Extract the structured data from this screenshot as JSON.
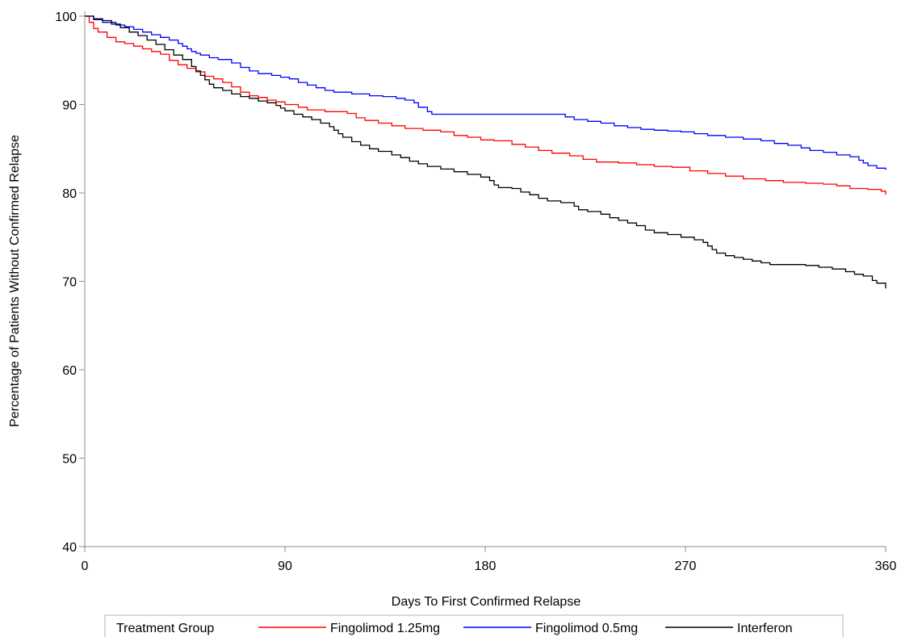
{
  "chart_data": {
    "type": "line",
    "title": "",
    "xlabel": "Days To First Confirmed Relapse",
    "ylabel": "Percentage of Patients Without Confirmed Relapse",
    "xlim": [
      0,
      360
    ],
    "ylim": [
      40,
      100
    ],
    "xticks": [
      0,
      90,
      180,
      270,
      360
    ],
    "yticks": [
      40,
      50,
      60,
      70,
      80,
      90,
      100
    ],
    "grid": false,
    "step": true,
    "legend": {
      "title": "Treatment Group",
      "placement": "bottom"
    },
    "series": [
      {
        "name": "Fingolimod 1.25mg",
        "color": "#ff0000",
        "points": [
          [
            0,
            100
          ],
          [
            2,
            99.3
          ],
          [
            4,
            98.6
          ],
          [
            6,
            98.2
          ],
          [
            10,
            97.6
          ],
          [
            14,
            97.1
          ],
          [
            18,
            96.9
          ],
          [
            22,
            96.6
          ],
          [
            26,
            96.3
          ],
          [
            30,
            96.0
          ],
          [
            34,
            95.7
          ],
          [
            38,
            95.0
          ],
          [
            42,
            94.5
          ],
          [
            46,
            94.1
          ],
          [
            50,
            93.7
          ],
          [
            54,
            93.2
          ],
          [
            58,
            92.9
          ],
          [
            62,
            92.5
          ],
          [
            66,
            92.0
          ],
          [
            70,
            91.4
          ],
          [
            74,
            91.0
          ],
          [
            78,
            90.8
          ],
          [
            82,
            90.5
          ],
          [
            86,
            90.3
          ],
          [
            90,
            90.0
          ],
          [
            96,
            89.7
          ],
          [
            100,
            89.4
          ],
          [
            108,
            89.2
          ],
          [
            118,
            89.0
          ],
          [
            122,
            88.5
          ],
          [
            126,
            88.2
          ],
          [
            132,
            87.9
          ],
          [
            138,
            87.6
          ],
          [
            144,
            87.3
          ],
          [
            152,
            87.1
          ],
          [
            160,
            86.9
          ],
          [
            166,
            86.5
          ],
          [
            172,
            86.3
          ],
          [
            178,
            86.0
          ],
          [
            184,
            85.9
          ],
          [
            192,
            85.5
          ],
          [
            198,
            85.2
          ],
          [
            204,
            84.8
          ],
          [
            210,
            84.5
          ],
          [
            218,
            84.2
          ],
          [
            224,
            83.8
          ],
          [
            230,
            83.5
          ],
          [
            240,
            83.4
          ],
          [
            248,
            83.2
          ],
          [
            256,
            83.0
          ],
          [
            264,
            82.9
          ],
          [
            272,
            82.5
          ],
          [
            280,
            82.2
          ],
          [
            288,
            81.9
          ],
          [
            296,
            81.6
          ],
          [
            306,
            81.4
          ],
          [
            314,
            81.2
          ],
          [
            324,
            81.1
          ],
          [
            332,
            81.0
          ],
          [
            338,
            80.8
          ],
          [
            344,
            80.5
          ],
          [
            352,
            80.4
          ],
          [
            358,
            80.2
          ],
          [
            360,
            79.8
          ]
        ]
      },
      {
        "name": "Fingolimod 0.5mg",
        "color": "#0000ff",
        "points": [
          [
            0,
            100
          ],
          [
            4,
            99.6
          ],
          [
            8,
            99.3
          ],
          [
            14,
            99.0
          ],
          [
            18,
            98.8
          ],
          [
            22,
            98.5
          ],
          [
            26,
            98.2
          ],
          [
            30,
            97.9
          ],
          [
            34,
            97.6
          ],
          [
            38,
            97.3
          ],
          [
            42,
            96.9
          ],
          [
            44,
            96.6
          ],
          [
            46,
            96.3
          ],
          [
            48,
            96.0
          ],
          [
            50,
            95.8
          ],
          [
            52,
            95.6
          ],
          [
            56,
            95.3
          ],
          [
            60,
            95.1
          ],
          [
            66,
            94.7
          ],
          [
            70,
            94.2
          ],
          [
            74,
            93.8
          ],
          [
            78,
            93.5
          ],
          [
            84,
            93.3
          ],
          [
            88,
            93.1
          ],
          [
            92,
            92.9
          ],
          [
            96,
            92.5
          ],
          [
            100,
            92.2
          ],
          [
            104,
            91.9
          ],
          [
            108,
            91.6
          ],
          [
            112,
            91.4
          ],
          [
            120,
            91.2
          ],
          [
            128,
            91.0
          ],
          [
            134,
            90.9
          ],
          [
            140,
            90.7
          ],
          [
            144,
            90.5
          ],
          [
            148,
            90.2
          ],
          [
            150,
            89.7
          ],
          [
            154,
            89.2
          ],
          [
            156,
            88.9
          ],
          [
            170,
            88.9
          ],
          [
            190,
            88.9
          ],
          [
            200,
            88.9
          ],
          [
            210,
            88.9
          ],
          [
            216,
            88.6
          ],
          [
            220,
            88.3
          ],
          [
            226,
            88.1
          ],
          [
            232,
            87.9
          ],
          [
            238,
            87.6
          ],
          [
            244,
            87.4
          ],
          [
            250,
            87.2
          ],
          [
            256,
            87.1
          ],
          [
            262,
            87.0
          ],
          [
            268,
            86.9
          ],
          [
            274,
            86.7
          ],
          [
            280,
            86.5
          ],
          [
            288,
            86.3
          ],
          [
            296,
            86.1
          ],
          [
            304,
            85.9
          ],
          [
            310,
            85.6
          ],
          [
            316,
            85.4
          ],
          [
            322,
            85.1
          ],
          [
            326,
            84.8
          ],
          [
            332,
            84.6
          ],
          [
            338,
            84.3
          ],
          [
            344,
            84.1
          ],
          [
            348,
            83.7
          ],
          [
            350,
            83.4
          ],
          [
            352,
            83.1
          ],
          [
            356,
            82.8
          ],
          [
            360,
            82.6
          ]
        ]
      },
      {
        "name": "Interferon",
        "color": "#000000",
        "points": [
          [
            0,
            100
          ],
          [
            4,
            99.7
          ],
          [
            8,
            99.5
          ],
          [
            12,
            99.1
          ],
          [
            16,
            98.7
          ],
          [
            20,
            98.2
          ],
          [
            24,
            97.8
          ],
          [
            28,
            97.3
          ],
          [
            32,
            96.8
          ],
          [
            36,
            96.2
          ],
          [
            40,
            95.6
          ],
          [
            44,
            95.1
          ],
          [
            48,
            94.3
          ],
          [
            50,
            93.8
          ],
          [
            52,
            93.3
          ],
          [
            54,
            92.8
          ],
          [
            56,
            92.3
          ],
          [
            58,
            91.9
          ],
          [
            62,
            91.6
          ],
          [
            66,
            91.2
          ],
          [
            70,
            90.9
          ],
          [
            74,
            90.7
          ],
          [
            78,
            90.4
          ],
          [
            82,
            90.2
          ],
          [
            86,
            89.9
          ],
          [
            88,
            89.6
          ],
          [
            90,
            89.3
          ],
          [
            94,
            88.9
          ],
          [
            98,
            88.6
          ],
          [
            102,
            88.3
          ],
          [
            106,
            87.9
          ],
          [
            110,
            87.5
          ],
          [
            112,
            87.1
          ],
          [
            114,
            86.7
          ],
          [
            116,
            86.3
          ],
          [
            120,
            85.8
          ],
          [
            124,
            85.4
          ],
          [
            128,
            85.0
          ],
          [
            132,
            84.7
          ],
          [
            138,
            84.3
          ],
          [
            142,
            84.0
          ],
          [
            146,
            83.6
          ],
          [
            150,
            83.3
          ],
          [
            154,
            83.0
          ],
          [
            160,
            82.7
          ],
          [
            166,
            82.4
          ],
          [
            172,
            82.1
          ],
          [
            178,
            81.8
          ],
          [
            182,
            81.4
          ],
          [
            184,
            80.9
          ],
          [
            186,
            80.6
          ],
          [
            192,
            80.5
          ],
          [
            196,
            80.1
          ],
          [
            200,
            79.8
          ],
          [
            204,
            79.4
          ],
          [
            208,
            79.1
          ],
          [
            214,
            78.9
          ],
          [
            220,
            78.5
          ],
          [
            222,
            78.1
          ],
          [
            226,
            77.9
          ],
          [
            232,
            77.6
          ],
          [
            236,
            77.2
          ],
          [
            240,
            76.9
          ],
          [
            244,
            76.6
          ],
          [
            248,
            76.3
          ],
          [
            252,
            75.8
          ],
          [
            256,
            75.5
          ],
          [
            262,
            75.3
          ],
          [
            268,
            75.0
          ],
          [
            274,
            74.7
          ],
          [
            278,
            74.4
          ],
          [
            280,
            74.0
          ],
          [
            282,
            73.6
          ],
          [
            284,
            73.2
          ],
          [
            288,
            72.9
          ],
          [
            292,
            72.7
          ],
          [
            296,
            72.5
          ],
          [
            300,
            72.3
          ],
          [
            304,
            72.1
          ],
          [
            308,
            71.9
          ],
          [
            316,
            71.9
          ],
          [
            324,
            71.8
          ],
          [
            330,
            71.6
          ],
          [
            336,
            71.4
          ],
          [
            342,
            71.1
          ],
          [
            346,
            70.8
          ],
          [
            350,
            70.6
          ],
          [
            354,
            70.1
          ],
          [
            356,
            69.8
          ],
          [
            360,
            69.2
          ]
        ]
      }
    ]
  }
}
